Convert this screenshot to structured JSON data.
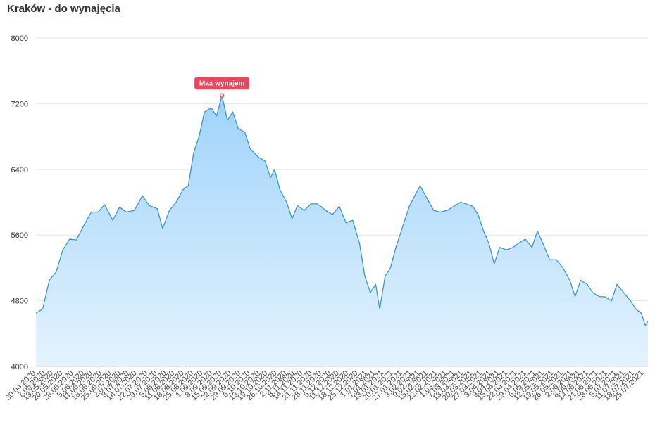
{
  "chart_title": "Kraków - do wynajęcia",
  "chart_data": {
    "type": "area",
    "title": "Kraków - do wynajęcia",
    "xlabel": "",
    "ylabel": "",
    "ylim": [
      4000,
      8000
    ],
    "y_ticks": [
      4000,
      4800,
      5600,
      6400,
      7200,
      8000
    ],
    "grid": true,
    "legend": "none",
    "x_tick_labels": [
      "30.04.2020",
      "7.05.2020",
      "13.05.2020",
      "20.05.2020",
      "28.05.2020",
      "5.06.2020",
      "11.06.2020",
      "18.06.2020",
      "25.06.2020",
      "2.07.2020",
      "8.07.2020",
      "14.07.2020",
      "22.07.2020",
      "29.07.2020",
      "5.08.2020",
      "11.08.2020",
      "18.08.2020",
      "25.08.2020",
      "1.09.2020",
      "8.09.2020",
      "15.09.2020",
      "22.09.2020",
      "29.09.2020",
      "6.10.2020",
      "13.10.2020",
      "19.10.2020",
      "26.10.2020",
      "2.11.2020",
      "8.11.2020",
      "14.11.2020",
      "21.11.2020",
      "28.11.2020",
      "5.12.2020",
      "11.12.2020",
      "18.12.2020",
      "25.12.2020",
      "1.01.2021",
      "7.01.2021",
      "13.01.2021",
      "20.01.2021",
      "27.01.2021",
      "3.02.2021",
      "9.02.2021",
      "15.02.2021",
      "22.02.2021",
      "1.03.2021",
      "7.03.2021",
      "13.03.2021",
      "20.03.2021",
      "27.03.2021",
      "3.04.2021",
      "9.04.2021",
      "15.04.2021",
      "22.04.2021",
      "29.04.2021",
      "6.05.2021",
      "12.05.2021",
      "19.05.2021",
      "26.05.2021",
      "2.06.2021",
      "8.06.2021",
      "14.06.2021",
      "21.06.2021",
      "28.06.2021",
      "5.07.2021",
      "11.07.2021",
      "18.07.2021",
      "25.07.2021"
    ],
    "series": [
      {
        "color": "#2b8fd8",
        "fill_top": "#9fd3fb",
        "fill_bottom": "#e4f3fe",
        "points": [
          [
            "30.04.2020",
            4650
          ],
          [
            "5.05.2020",
            4700
          ],
          [
            "10.05.2020",
            5050
          ],
          [
            "15.05.2020",
            5150
          ],
          [
            "20.05.2020",
            5420
          ],
          [
            "25.05.2020",
            5550
          ],
          [
            "30.05.2020",
            5540
          ],
          [
            "4.06.2020",
            5700
          ],
          [
            "10.06.2020",
            5880
          ],
          [
            "15.06.2020",
            5880
          ],
          [
            "20.06.2020",
            5970
          ],
          [
            "26.06.2020",
            5780
          ],
          [
            "1.07.2020",
            5940
          ],
          [
            "6.07.2020",
            5880
          ],
          [
            "12.07.2020",
            5900
          ],
          [
            "18.07.2020",
            6080
          ],
          [
            "23.07.2020",
            5960
          ],
          [
            "29.07.2020",
            5920
          ],
          [
            "2.08.2020",
            5680
          ],
          [
            "7.08.2020",
            5900
          ],
          [
            "12.08.2020",
            6000
          ],
          [
            "17.08.2020",
            6150
          ],
          [
            "21.08.2020",
            6200
          ],
          [
            "25.08.2020",
            6600
          ],
          [
            "29.08.2020",
            6800
          ],
          [
            "2.09.2020",
            7100
          ],
          [
            "7.09.2020",
            7150
          ],
          [
            "11.09.2020",
            7050
          ],
          [
            "15.09.2020",
            7300
          ],
          [
            "19.09.2020",
            7000
          ],
          [
            "23.09.2020",
            7100
          ],
          [
            "27.09.2020",
            6900
          ],
          [
            "2.10.2020",
            6850
          ],
          [
            "6.10.2020",
            6650
          ],
          [
            "12.10.2020",
            6550
          ],
          [
            "17.10.2020",
            6500
          ],
          [
            "21.10.2020",
            6300
          ],
          [
            "24.10.2020",
            6400
          ],
          [
            "28.10.2020",
            6150
          ],
          [
            "2.11.2020",
            6000
          ],
          [
            "6.11.2020",
            5800
          ],
          [
            "10.11.2020",
            5960
          ],
          [
            "15.11.2020",
            5900
          ],
          [
            "20.11.2020",
            5980
          ],
          [
            "25.11.2020",
            5980
          ],
          [
            "1.12.2020",
            5900
          ],
          [
            "6.12.2020",
            5850
          ],
          [
            "11.12.2020",
            5950
          ],
          [
            "16.12.2020",
            5750
          ],
          [
            "21.12.2020",
            5780
          ],
          [
            "26.12.2020",
            5500
          ],
          [
            "30.12.2020",
            5100
          ],
          [
            "3.01.2021",
            4900
          ],
          [
            "7.01.2021",
            5000
          ],
          [
            "10.01.2021",
            4700
          ],
          [
            "14.01.2021",
            5100
          ],
          [
            "18.01.2021",
            5200
          ],
          [
            "22.01.2021",
            5450
          ],
          [
            "27.01.2021",
            5700
          ],
          [
            "1.02.2021",
            5950
          ],
          [
            "5.02.2021",
            6080
          ],
          [
            "9.02.2021",
            6200
          ],
          [
            "14.02.2021",
            6050
          ],
          [
            "19.02.2021",
            5900
          ],
          [
            "24.02.2021",
            5880
          ],
          [
            "1.03.2021",
            5900
          ],
          [
            "6.03.2021",
            5950
          ],
          [
            "11.03.2021",
            6000
          ],
          [
            "15.03.2021",
            5980
          ],
          [
            "20.03.2021",
            5950
          ],
          [
            "24.03.2021",
            5850
          ],
          [
            "28.03.2021",
            5650
          ],
          [
            "1.04.2021",
            5500
          ],
          [
            "5.04.2021",
            5250
          ],
          [
            "9.04.2021",
            5450
          ],
          [
            "14.04.2021",
            5420
          ],
          [
            "19.04.2021",
            5450
          ],
          [
            "23.04.2021",
            5500
          ],
          [
            "28.04.2021",
            5550
          ],
          [
            "3.05.2021",
            5450
          ],
          [
            "7.05.2021",
            5650
          ],
          [
            "11.05.2021",
            5500
          ],
          [
            "16.05.2021",
            5300
          ],
          [
            "21.05.2021",
            5300
          ],
          [
            "26.05.2021",
            5200
          ],
          [
            "31.05.2021",
            5050
          ],
          [
            "4.06.2021",
            4850
          ],
          [
            "8.06.2021",
            5050
          ],
          [
            "13.06.2021",
            5000
          ],
          [
            "17.06.2021",
            4900
          ],
          [
            "22.06.2021",
            4850
          ],
          [
            "26.06.2021",
            4850
          ],
          [
            "1.07.2021",
            4800
          ],
          [
            "5.07.2021",
            5000
          ],
          [
            "10.07.2021",
            4900
          ],
          [
            "15.07.2021",
            4800
          ],
          [
            "19.07.2021",
            4700
          ],
          [
            "23.07.2021",
            4650
          ],
          [
            "26.07.2021",
            4500
          ],
          [
            "28.07.2021",
            4550
          ]
        ]
      }
    ],
    "annotations": [
      {
        "label": "Max wynajem",
        "x": "15.09.2020",
        "y": 7300,
        "color": "#f0445c"
      }
    ]
  }
}
